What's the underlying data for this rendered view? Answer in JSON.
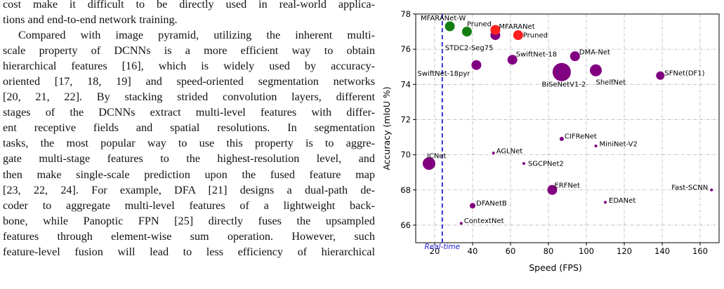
{
  "paper_text": {
    "lines": [
      "cost make it difficult to be directly used in real-world applica-",
      "tions and end-to-end network training.",
      "Compared with image pyramid, utilizing the inherent multi-",
      "scale property of DCNNs is a more efficient way to obtain",
      "hierarchical features [16], which is widely used by accuracy-",
      "oriented [17, 18, 19] and speed-oriented segmentation networks",
      "[20, 21, 22]. By stacking strided convolution layers, different",
      "stages of the DCNNs extract multi-level features with differ-",
      "ent receptive fields and spatial resolutions. In segmentation",
      "tasks, the most popular way to use this property is to aggre-",
      "gate multi-stage features to the highest-resolution level, and",
      "then make single-scale prediction upon the fused feature map",
      "[23, 22, 24]. For example, DFA [21] designs a dual-path de-",
      "coder to aggregate multi-level features of a lightweight back-",
      "bone, while Panoptic FPN [25] directly fuses the upsampled",
      "features through element-wise sum operation. However, such",
      "feature-level fusion will lead to less efficiency of hierarchical"
    ]
  },
  "chart_data": {
    "type": "scatter",
    "xlabel": "Speed (FPS)",
    "ylabel": "Accuracy (mIoU %)",
    "xlim": [
      10,
      170
    ],
    "ylim": [
      65,
      78
    ],
    "xticks": [
      20,
      40,
      60,
      80,
      100,
      120,
      140,
      160
    ],
    "yticks": [
      66,
      68,
      70,
      72,
      74,
      76,
      78
    ],
    "grid": true,
    "reference_line": {
      "x": 24,
      "label": "Real-time",
      "color": "#1f1fcc"
    },
    "colors": {
      "purple": "#800080",
      "green": "#137f13",
      "red": "#ff1f1f"
    },
    "points": [
      {
        "name": "MFARANet-W",
        "x": 28,
        "y": 77.3,
        "size": 7,
        "color": "green"
      },
      {
        "name": "Pruned",
        "x": 37,
        "y": 77.0,
        "size": 7,
        "color": "green"
      },
      {
        "name": "STDC2-Seg75",
        "x": 52,
        "y": 76.8,
        "size": 7,
        "color": "purple"
      },
      {
        "name": "MFARANet",
        "x": 52,
        "y": 77.1,
        "size": 7,
        "color": "red"
      },
      {
        "name": "Pruned",
        "x": 64,
        "y": 76.8,
        "size": 7,
        "color": "red"
      },
      {
        "name": "SwiftNet-18",
        "x": 61,
        "y": 75.4,
        "size": 7,
        "color": "purple"
      },
      {
        "name": "DMA-Net",
        "x": 94,
        "y": 75.6,
        "size": 7,
        "color": "purple"
      },
      {
        "name": "SwiftNet-18pyr",
        "x": 42,
        "y": 75.1,
        "size": 7,
        "color": "purple"
      },
      {
        "name": "BiSeNetV1-2",
        "x": 87,
        "y": 74.7,
        "size": 13,
        "color": "purple"
      },
      {
        "name": "ShelfNet",
        "x": 105,
        "y": 74.8,
        "size": 8.5,
        "color": "purple"
      },
      {
        "name": "SFNet(DF1)",
        "x": 139,
        "y": 74.5,
        "size": 6,
        "color": "purple"
      },
      {
        "name": "CIFReNet",
        "x": 87,
        "y": 70.9,
        "size": 3,
        "color": "purple"
      },
      {
        "name": "MiniNet-V2",
        "x": 105,
        "y": 70.5,
        "size": 2,
        "color": "purple"
      },
      {
        "name": "AGLNet",
        "x": 51,
        "y": 70.1,
        "size": 2,
        "color": "purple"
      },
      {
        "name": "ICNet",
        "x": 17,
        "y": 69.5,
        "size": 9,
        "color": "purple"
      },
      {
        "name": "SGCPNet2",
        "x": 67,
        "y": 69.5,
        "size": 2,
        "color": "purple"
      },
      {
        "name": "ERFNet",
        "x": 82,
        "y": 68.0,
        "size": 7,
        "color": "purple"
      },
      {
        "name": "Fast-SCNN",
        "x": 166,
        "y": 68.0,
        "size": 2,
        "color": "purple"
      },
      {
        "name": "EDANet",
        "x": 110,
        "y": 67.3,
        "size": 2,
        "color": "purple"
      },
      {
        "name": "DFANetB",
        "x": 40,
        "y": 67.1,
        "size": 4,
        "color": "purple"
      },
      {
        "name": "ContextNet",
        "x": 34,
        "y": 66.1,
        "size": 2,
        "color": "purple"
      }
    ]
  }
}
